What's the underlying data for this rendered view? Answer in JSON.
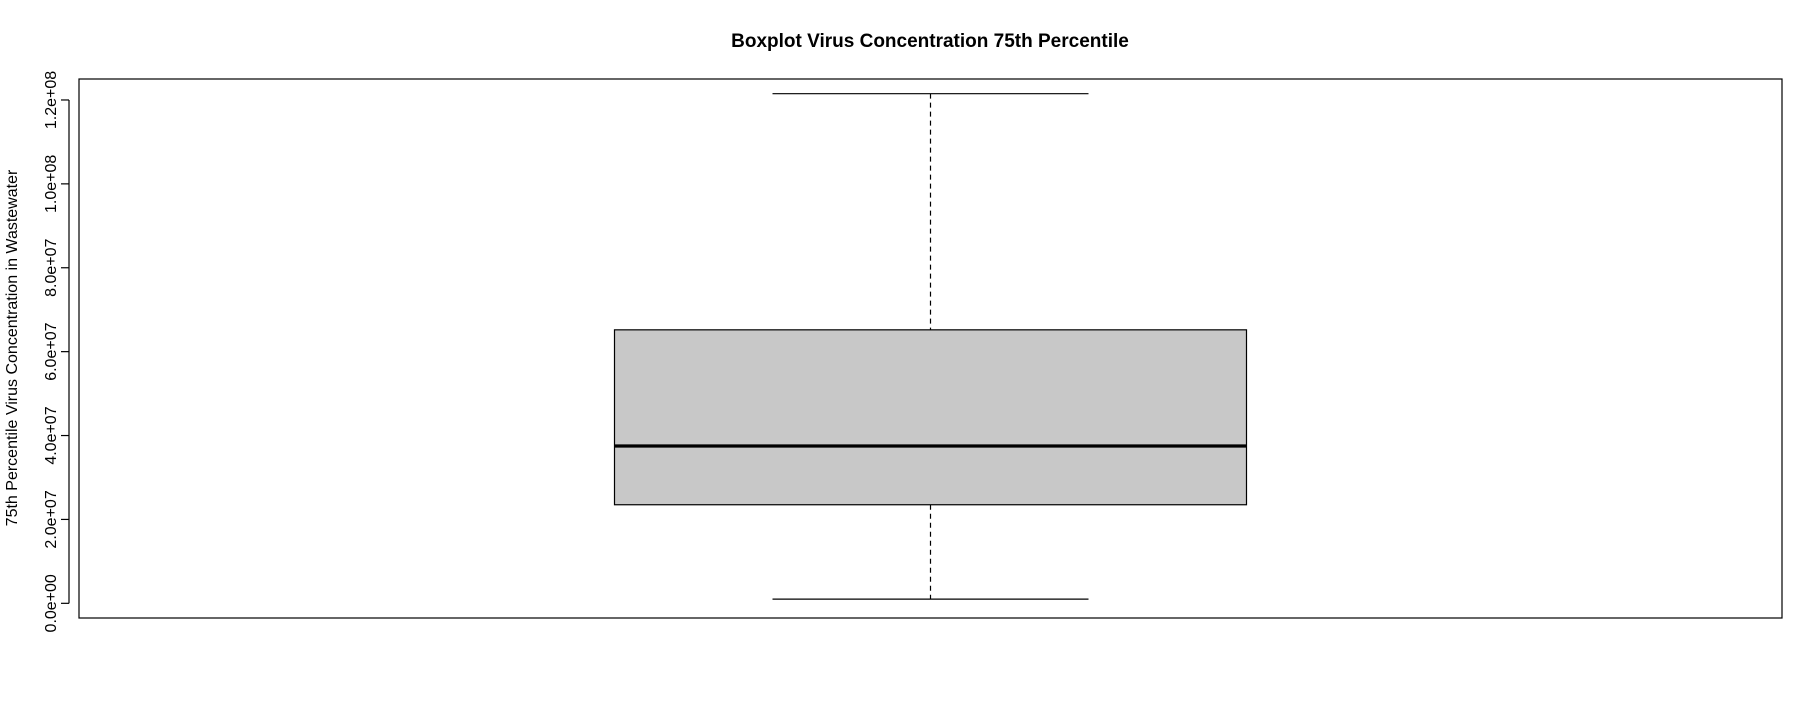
{
  "chart_data": {
    "type": "boxplot",
    "title": "Boxplot Virus Concentration 75th Percentile",
    "xlabel": "",
    "ylabel": "75th Percentile Virus Concentration in Wastewater",
    "ylim": [
      -3500000,
      125000000
    ],
    "y_ticks": [
      0,
      20000000,
      40000000,
      60000000,
      80000000,
      100000000,
      120000000
    ],
    "y_tick_labels": [
      "0.0e+00",
      "2.0e+07",
      "4.0e+07",
      "6.0e+07",
      "8.0e+07",
      "1.0e+08",
      "1.2e+08"
    ],
    "grid": false,
    "box": {
      "min": 1000000,
      "q1": 23500000,
      "median": 37500000,
      "q3": 65200000,
      "max": 121500000
    },
    "colors": {
      "box_fill": "#c8c8c8",
      "stroke": "#000000",
      "background": "#ffffff"
    }
  }
}
